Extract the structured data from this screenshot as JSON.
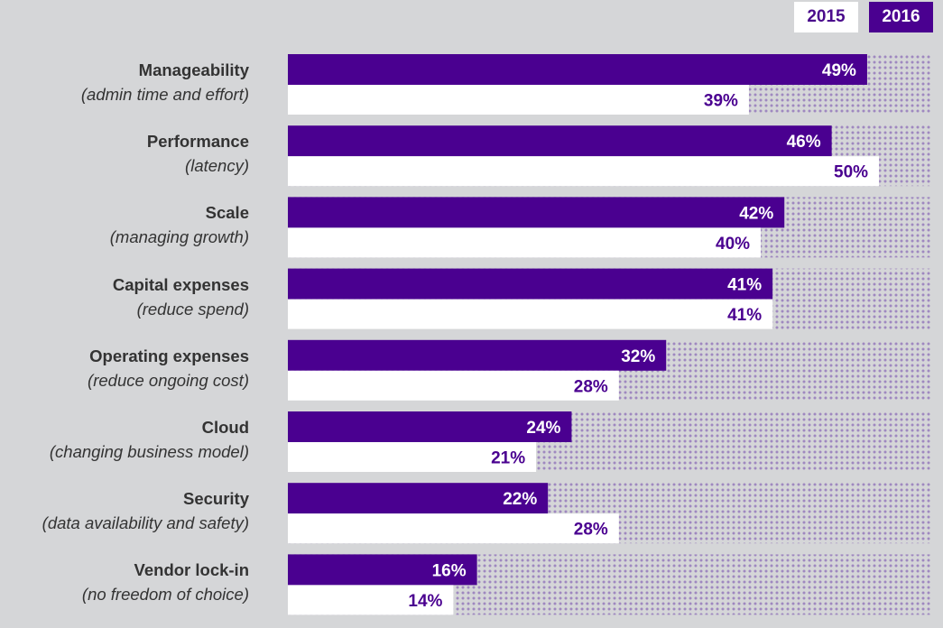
{
  "chart_data": {
    "type": "bar",
    "orientation": "horizontal",
    "legend": [
      "2015",
      "2016"
    ],
    "legend_placement": "top-right",
    "colors": {
      "2016": "#4a0090",
      "2015": "#ffffff",
      "track": "#b7a6cc"
    },
    "xlim": [
      0,
      54.5
    ],
    "categories": [
      {
        "title": "Manageability",
        "subtitle": "(admin time and effort)"
      },
      {
        "title": "Performance",
        "subtitle": "(latency)"
      },
      {
        "title": "Scale",
        "subtitle": "(managing growth)"
      },
      {
        "title": "Capital expenses",
        "subtitle": "(reduce spend)"
      },
      {
        "title": "Operating expenses",
        "subtitle": "(reduce ongoing cost)"
      },
      {
        "title": "Cloud",
        "subtitle": "(changing business model)"
      },
      {
        "title": "Security",
        "subtitle": "(data availability and safety)"
      },
      {
        "title": "Vendor lock-in",
        "subtitle": "(no freedom of choice)"
      }
    ],
    "series": [
      {
        "name": "2016",
        "values": [
          49,
          46,
          42,
          41,
          32,
          24,
          22,
          16
        ]
      },
      {
        "name": "2015",
        "values": [
          39,
          50,
          40,
          41,
          28,
          21,
          28,
          14
        ]
      }
    ]
  }
}
